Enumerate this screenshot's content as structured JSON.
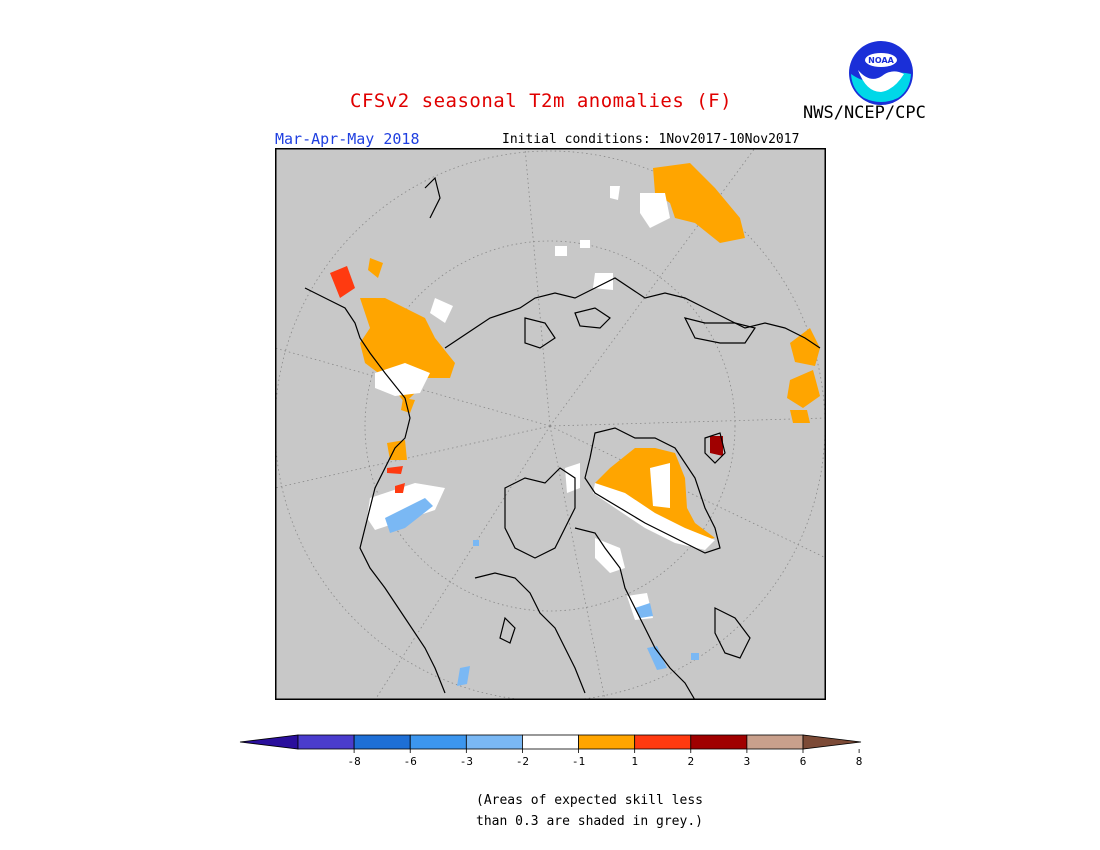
{
  "header": {
    "title": "CFSv2 seasonal T2m anomalies (F)",
    "agency": "NWS/NCEP/CPC",
    "period": "Mar-Apr-May 2018",
    "initial_conditions": "Initial conditions: 1Nov2017-10Nov2017",
    "logo_text": "NOAA"
  },
  "map": {
    "projection": "north-polar-stereographic",
    "background_color": "#c8c8c8",
    "graticule": "dotted"
  },
  "legend": {
    "ticks": [
      "-8",
      "-6",
      "-3",
      "-2",
      "-1",
      "1",
      "2",
      "3",
      "6",
      "8"
    ],
    "colors": [
      "#2a0f9c",
      "#4a3ccd",
      "#1e6fd6",
      "#3c96ee",
      "#7ab8f4",
      "#ffffff",
      "#ffa500",
      "#ff3a10",
      "#a00000",
      "#c9a08c",
      "#7c4a36"
    ]
  },
  "footnote": {
    "line1": "(Areas of expected skill less",
    "line2": "than 0.3 are shaded in grey.)"
  }
}
